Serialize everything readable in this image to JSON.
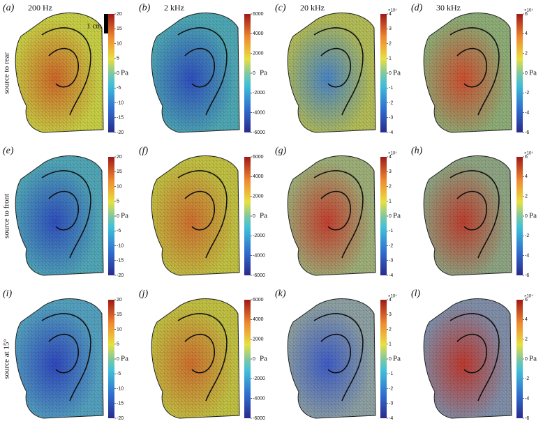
{
  "columns": [
    {
      "header": "200 Hz",
      "colorbar": {
        "lim": [
          -20,
          20
        ],
        "ticks": [
          20,
          15,
          10,
          5,
          0,
          -5,
          -10,
          -15,
          -20
        ],
        "unit": "Pa"
      }
    },
    {
      "header": "2 kHz",
      "colorbar": {
        "lim": [
          -6000,
          6000
        ],
        "ticks": [
          6000,
          4000,
          2000,
          0,
          -2000,
          -4000,
          -6000
        ],
        "unit": "Pa"
      }
    },
    {
      "header": "20 kHz",
      "colorbar": {
        "lim": [
          -4,
          4
        ],
        "ticks": [
          4,
          3,
          2,
          1,
          0,
          -1,
          -2,
          -3,
          -4
        ],
        "unit": "Pa",
        "multiplier": "×10⁴"
      }
    },
    {
      "header": "30 kHz",
      "colorbar": {
        "lim": [
          -6,
          6
        ],
        "ticks": [
          6,
          4,
          2,
          0,
          -2,
          -4,
          -6
        ],
        "unit": "Pa",
        "multiplier": "×10⁴"
      }
    }
  ],
  "rows": [
    {
      "label": "source to rear",
      "panels": [
        "(a)",
        "(b)",
        "(c)",
        "(d)"
      ]
    },
    {
      "label": "source to front",
      "panels": [
        "(e)",
        "(f)",
        "(g)",
        "(h)"
      ]
    },
    {
      "label": "source at 15°",
      "panels": [
        "(i)",
        "(j)",
        "(k)",
        "(l)"
      ]
    }
  ],
  "scale_bar": "1 cm"
}
